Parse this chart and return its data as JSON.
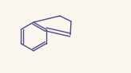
{
  "background_color": "#faf6ee",
  "bond_color": "#4a4a8a",
  "text_color": "#4a4a8a",
  "figsize": [
    1.64,
    0.92
  ],
  "dpi": 100,
  "lw": 1.0
}
